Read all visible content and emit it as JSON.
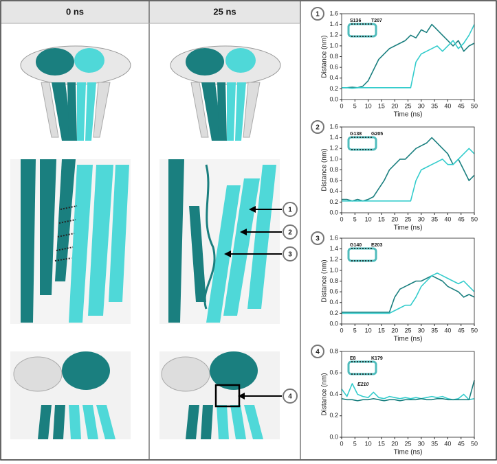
{
  "columns": [
    "0 ns",
    "25 ns"
  ],
  "callouts": [
    "1",
    "2",
    "3",
    "4"
  ],
  "chart_data": [
    {
      "type": "line",
      "panel_label": "1",
      "annotations": [
        "S136",
        "T207"
      ],
      "xlabel": "Time (ns)",
      "ylabel": "Distance (nm)",
      "x": [
        0,
        2,
        4,
        6,
        8,
        10,
        12,
        14,
        16,
        18,
        20,
        22,
        24,
        26,
        28,
        30,
        32,
        34,
        36,
        38,
        40,
        42,
        44,
        46,
        48,
        50
      ],
      "series": [
        {
          "name": null,
          "color": "#1a7f7f",
          "values": [
            0.22,
            0.22,
            0.23,
            0.22,
            0.25,
            0.35,
            0.55,
            0.75,
            0.85,
            0.95,
            1.0,
            1.05,
            1.1,
            1.2,
            1.15,
            1.3,
            1.25,
            1.4,
            1.3,
            1.2,
            1.1,
            1.0,
            1.1,
            0.9,
            1.0,
            1.05
          ]
        },
        {
          "name": null,
          "color": "#33cccc",
          "values": [
            0.22,
            0.22,
            0.21,
            0.22,
            0.22,
            0.22,
            0.22,
            0.22,
            0.22,
            0.22,
            0.22,
            0.22,
            0.22,
            0.22,
            0.7,
            0.85,
            0.9,
            0.95,
            1.0,
            0.9,
            1.0,
            1.1,
            0.95,
            1.05,
            1.2,
            1.4
          ]
        }
      ],
      "xlim": [
        0,
        50
      ],
      "xticks": [
        0,
        5,
        10,
        15,
        20,
        25,
        30,
        35,
        40,
        45,
        50
      ],
      "ylim": [
        0,
        1.6
      ],
      "yticks": [
        {
          "value": 0,
          "label": "0.0"
        },
        0.2,
        0.4,
        0.6,
        0.8,
        {
          "value": 1,
          "label": "1.0"
        },
        1.2,
        1.4,
        1.6
      ]
    },
    {
      "type": "line",
      "panel_label": "2",
      "annotations": [
        "G138",
        "G205"
      ],
      "xlabel": "Time (ns)",
      "ylabel": "Distance (nm)",
      "x": [
        0,
        2,
        4,
        6,
        8,
        10,
        12,
        14,
        16,
        18,
        20,
        22,
        24,
        26,
        28,
        30,
        32,
        34,
        36,
        38,
        40,
        42,
        44,
        46,
        48,
        50
      ],
      "series": [
        {
          "name": null,
          "color": "#1a7f7f",
          "values": [
            0.25,
            0.25,
            0.22,
            0.25,
            0.22,
            0.25,
            0.3,
            0.45,
            0.6,
            0.8,
            0.9,
            1.0,
            1.0,
            1.1,
            1.2,
            1.25,
            1.3,
            1.4,
            1.3,
            1.2,
            1.1,
            0.9,
            1.0,
            0.8,
            0.6,
            0.7
          ]
        },
        {
          "name": null,
          "color": "#33cccc",
          "values": [
            0.22,
            0.22,
            0.22,
            0.22,
            0.22,
            0.22,
            0.22,
            0.22,
            0.22,
            0.22,
            0.22,
            0.22,
            0.22,
            0.22,
            0.6,
            0.8,
            0.85,
            0.9,
            0.95,
            1.0,
            0.9,
            0.9,
            1.0,
            1.1,
            1.2,
            1.1
          ]
        }
      ],
      "xlim": [
        0,
        50
      ],
      "xticks": [
        0,
        5,
        10,
        15,
        20,
        25,
        30,
        35,
        40,
        45,
        50
      ],
      "ylim": [
        0,
        1.6
      ],
      "yticks": [
        {
          "value": 0,
          "label": "0.0"
        },
        0.2,
        0.4,
        0.6,
        0.8,
        {
          "value": 1,
          "label": "1.0"
        },
        1.2,
        1.4,
        1.6
      ]
    },
    {
      "type": "line",
      "panel_label": "3",
      "annotations": [
        "G140",
        "E203"
      ],
      "xlabel": "Time (ns)",
      "ylabel": "Distance (nm)",
      "x": [
        0,
        2,
        4,
        6,
        8,
        10,
        12,
        14,
        16,
        18,
        20,
        22,
        24,
        26,
        28,
        30,
        32,
        34,
        36,
        38,
        40,
        42,
        44,
        46,
        48,
        50
      ],
      "series": [
        {
          "name": null,
          "color": "#1a7f7f",
          "values": [
            0.22,
            0.22,
            0.22,
            0.22,
            0.22,
            0.22,
            0.22,
            0.22,
            0.22,
            0.22,
            0.5,
            0.65,
            0.7,
            0.75,
            0.8,
            0.8,
            0.85,
            0.9,
            0.85,
            0.8,
            0.7,
            0.65,
            0.6,
            0.5,
            0.55,
            0.5
          ]
        },
        {
          "name": null,
          "color": "#33cccc",
          "values": [
            0.2,
            0.2,
            0.2,
            0.2,
            0.2,
            0.2,
            0.2,
            0.2,
            0.2,
            0.2,
            0.25,
            0.3,
            0.35,
            0.35,
            0.5,
            0.7,
            0.8,
            0.9,
            0.95,
            0.9,
            0.85,
            0.8,
            0.75,
            0.8,
            0.7,
            0.6
          ]
        }
      ],
      "xlim": [
        0,
        50
      ],
      "xticks": [
        0,
        5,
        10,
        15,
        20,
        25,
        30,
        35,
        40,
        45,
        50
      ],
      "ylim": [
        0,
        1.6
      ],
      "yticks": [
        {
          "value": 0,
          "label": "0.0"
        },
        0.2,
        0.4,
        0.6,
        0.8,
        {
          "value": 1,
          "label": "1.0"
        },
        1.2,
        1.4,
        1.6
      ]
    },
    {
      "type": "line",
      "panel_label": "4",
      "annotations": [
        "E8",
        "K179",
        "E210"
      ],
      "xlabel": "Time (ns)",
      "ylabel": "Distance (nm)",
      "x": [
        0,
        2,
        4,
        6,
        8,
        10,
        12,
        14,
        16,
        18,
        20,
        22,
        24,
        26,
        28,
        30,
        32,
        34,
        36,
        38,
        40,
        42,
        44,
        46,
        48,
        50
      ],
      "series": [
        {
          "name": null,
          "color": "#33cccc",
          "values": [
            0.45,
            0.38,
            0.5,
            0.4,
            0.38,
            0.37,
            0.42,
            0.37,
            0.36,
            0.38,
            0.37,
            0.36,
            0.37,
            0.36,
            0.37,
            0.36,
            0.37,
            0.38,
            0.37,
            0.38,
            0.36,
            0.35,
            0.36,
            0.4,
            0.35,
            0.36
          ]
        },
        {
          "name": null,
          "color": "#1a7f7f",
          "values": [
            0.36,
            0.35,
            0.35,
            0.34,
            0.35,
            0.35,
            0.36,
            0.35,
            0.34,
            0.35,
            0.35,
            0.34,
            0.35,
            0.35,
            0.35,
            0.36,
            0.35,
            0.35,
            0.36,
            0.36,
            0.35,
            0.35,
            0.35,
            0.35,
            0.35,
            0.53
          ]
        }
      ],
      "xlim": [
        0,
        50
      ],
      "xticks": [
        0,
        5,
        10,
        15,
        20,
        25,
        30,
        35,
        40,
        45,
        50
      ],
      "ylim": [
        0,
        0.8
      ],
      "yticks": [
        {
          "value": 0,
          "label": "0.0"
        },
        0.2,
        0.4,
        0.6,
        0.8
      ]
    }
  ]
}
